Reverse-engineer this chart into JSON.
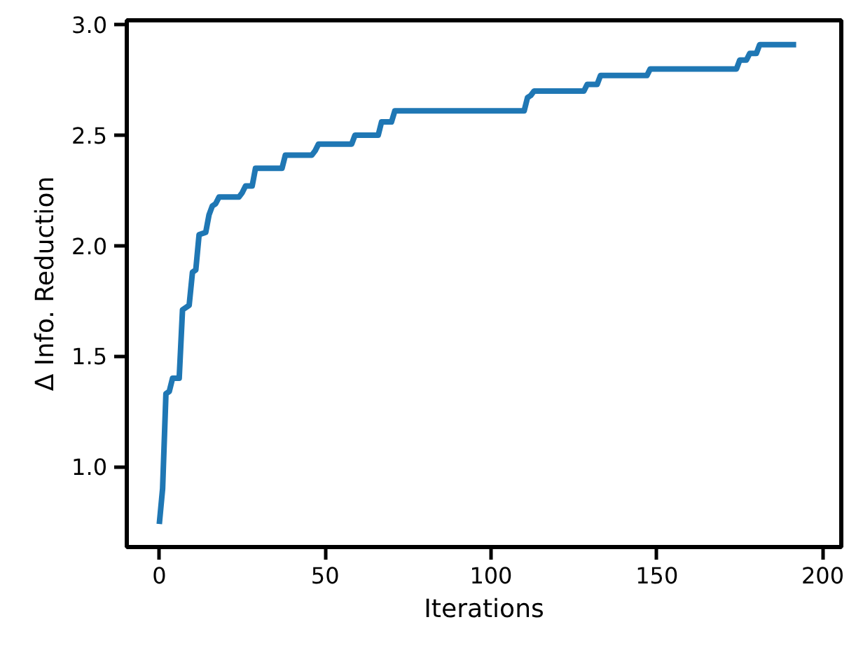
{
  "chart_data": {
    "type": "line",
    "xlabel": "Iterations",
    "ylabel": "Δ Info. Reduction",
    "x": [
      0,
      1,
      2,
      3,
      4,
      6,
      7,
      8,
      9,
      10,
      11,
      12,
      14,
      15,
      16,
      17,
      18,
      24,
      25,
      26,
      28,
      29,
      37,
      38,
      46,
      47,
      48,
      58,
      59,
      66,
      67,
      70,
      71,
      110,
      111,
      112,
      113,
      128,
      129,
      132,
      133,
      147,
      148,
      174,
      175,
      177,
      178,
      180,
      181,
      192
    ],
    "series": [
      {
        "color": "#1f77b4",
        "values": [
          0.74,
          0.9,
          1.33,
          1.34,
          1.4,
          1.4,
          1.71,
          1.72,
          1.73,
          1.88,
          1.89,
          2.05,
          2.06,
          2.14,
          2.18,
          2.19,
          2.22,
          2.22,
          2.24,
          2.27,
          2.27,
          2.35,
          2.35,
          2.41,
          2.41,
          2.43,
          2.46,
          2.46,
          2.5,
          2.5,
          2.56,
          2.56,
          2.61,
          2.61,
          2.67,
          2.68,
          2.7,
          2.7,
          2.73,
          2.73,
          2.77,
          2.77,
          2.8,
          2.8,
          2.84,
          2.84,
          2.87,
          2.87,
          2.91,
          2.91
        ]
      }
    ],
    "xlim": [
      -9.8,
      205.6
    ],
    "ylim": [
      0.636,
      3.02
    ],
    "xticks": [
      0,
      50,
      100,
      150,
      200
    ],
    "yticks": [
      {
        "value": 1,
        "label": "1.0"
      },
      {
        "value": 1.5,
        "label": "1.5"
      },
      {
        "value": 2,
        "label": "2.0"
      },
      {
        "value": 2.5,
        "label": "2.5"
      },
      {
        "value": 3,
        "label": "3.0"
      }
    ],
    "grid": false,
    "marker": "none",
    "line_style": "solid"
  }
}
